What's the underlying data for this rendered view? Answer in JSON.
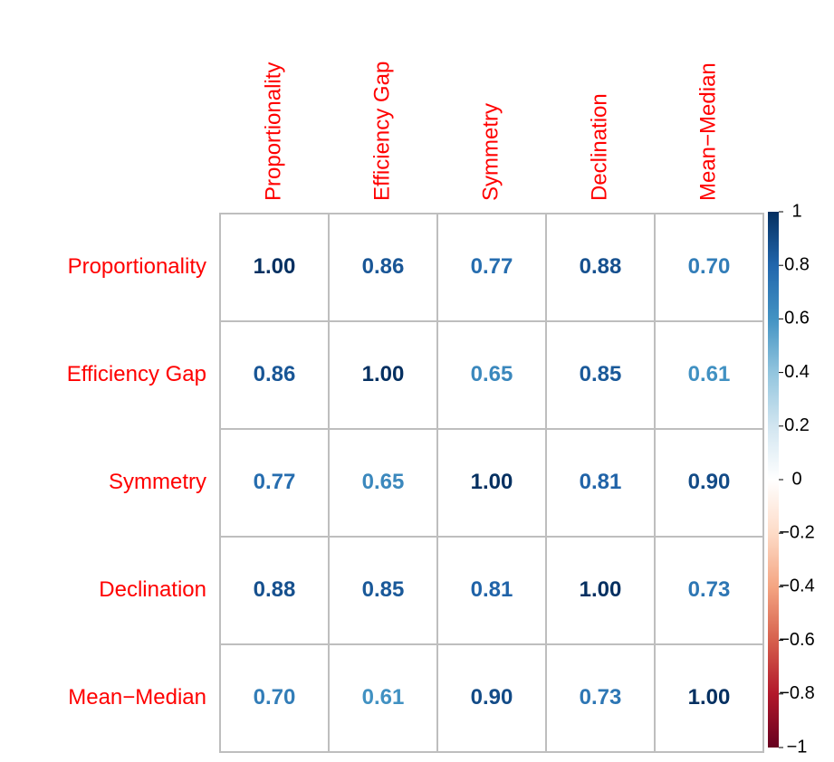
{
  "chart_data": {
    "type": "heatmap",
    "categories": [
      "Proportionality",
      "Efficiency Gap",
      "Symmetry",
      "Declination",
      "Mean−Median"
    ],
    "values": [
      [
        1,
        0.86,
        0.77,
        0.88,
        0.7
      ],
      [
        0.86,
        1,
        0.65,
        0.85,
        0.61
      ],
      [
        0.77,
        0.65,
        1,
        0.81,
        0.9
      ],
      [
        0.88,
        0.85,
        0.81,
        1,
        0.73
      ],
      [
        0.7,
        0.61,
        0.9,
        0.73,
        1
      ]
    ],
    "value_labels": [
      [
        "1.00",
        "0.86",
        "0.77",
        "0.88",
        "0.70"
      ],
      [
        "0.86",
        "1.00",
        "0.65",
        "0.85",
        "0.61"
      ],
      [
        "0.77",
        "0.65",
        "1.00",
        "0.81",
        "0.90"
      ],
      [
        "0.88",
        "0.85",
        "0.81",
        "1.00",
        "0.73"
      ],
      [
        "0.70",
        "0.61",
        "0.90",
        "0.73",
        "1.00"
      ]
    ],
    "label_color": "#ff0000",
    "colorscale": [
      "#67001F",
      "#B2182B",
      "#D6604D",
      "#F4A582",
      "#FDDBC7",
      "#FFFFFF",
      "#D1E5F0",
      "#92C5DE",
      "#4393C3",
      "#2166AC",
      "#053061"
    ],
    "zlim": [
      -1,
      1
    ],
    "zticks": [
      1,
      0.8,
      0.6,
      0.4,
      0.2,
      0,
      {
        "value": -0.2,
        "label": "−0.2"
      },
      {
        "value": -0.4,
        "label": "−0.4"
      },
      {
        "value": -0.6,
        "label": "−0.6"
      },
      {
        "value": -0.8,
        "label": "−0.8"
      },
      {
        "value": -1,
        "label": "−1"
      }
    ]
  }
}
